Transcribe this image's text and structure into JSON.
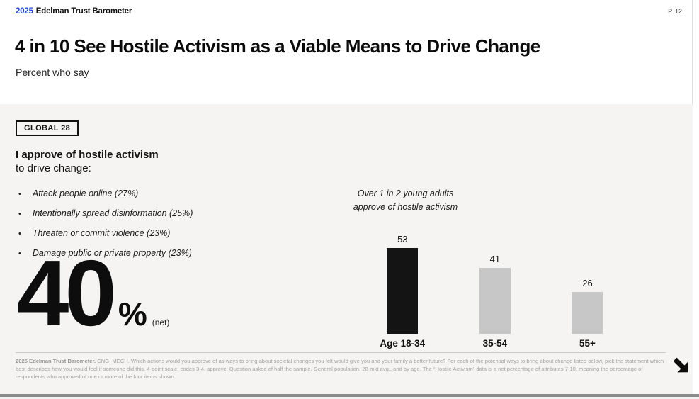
{
  "header": {
    "logo_year": "2025",
    "logo_text": "Edelman Trust Barometer",
    "page_number": "P. 12"
  },
  "title": "4 in 10 See Hostile Activism as a Viable Means to Drive Change",
  "subtitle": "Percent who say",
  "panel": {
    "badge": "GLOBAL 28",
    "statement_bold": "I approve of hostile activism",
    "statement_rest": "to drive change:",
    "bullets": [
      "Attack people online (27%)",
      "Intentionally spread disinformation (25%)",
      "Threaten or commit violence (23%)",
      "Damage public or private property (23%)"
    ],
    "big_stat": {
      "value": "40",
      "unit": "%",
      "qualifier": "(net)"
    }
  },
  "chart_data": {
    "type": "bar",
    "annotation_lines": [
      "Over 1 in 2 young adults",
      "approve of hostile activism"
    ],
    "categories": [
      "Age 18-34",
      "35-54",
      "55+"
    ],
    "values": [
      53,
      41,
      26
    ],
    "bar_colors": [
      "#141414",
      "#c7c7c7",
      "#c7c7c7"
    ],
    "ylim": [
      0,
      60
    ],
    "grid": false,
    "legend": false,
    "value_labels": "above bars"
  },
  "footer": {
    "source_bold": "2025 Edelman Trust Barometer.",
    "text": " CNG_MECH. Which actions would you approve of as ways to bring about societal changes you felt would give you and your family a better future? For each of the potential ways to bring about change listed below, pick the statement which best describes how you would feel if someone did this. 4-point scale, codes 3-4, approve. Question asked of half the sample. General population, 28-mkt avg., and by age. The “Hostile Activism” data is a net percentage of attributes 7-10, meaning the percentage of respondents who approved of one or more of the four items shown."
  },
  "icons": {
    "next_arrow": "arrow-down-right"
  },
  "colors": {
    "accent_blue": "#2347e8",
    "panel_bg": "#f5f4f2",
    "bar_black": "#141414",
    "bar_gray": "#c7c7c7",
    "footer_text": "#a3a3a3"
  }
}
